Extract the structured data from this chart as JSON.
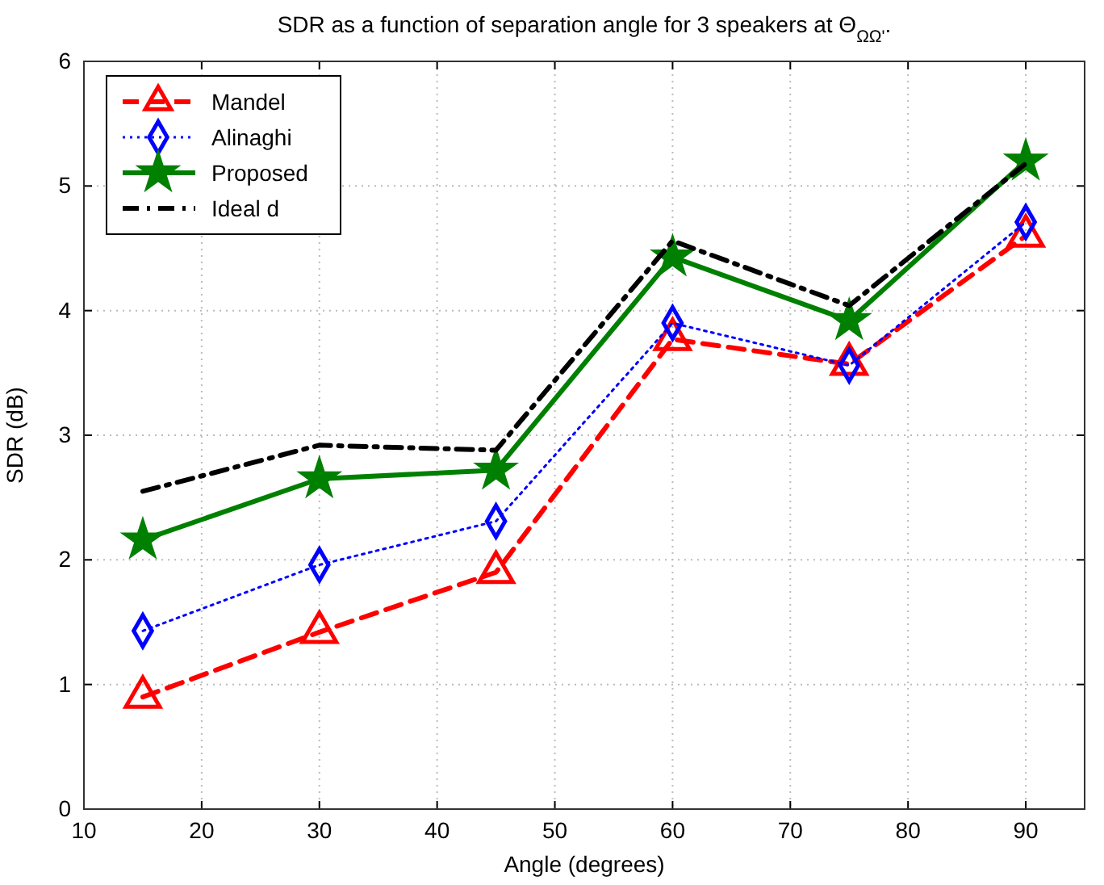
{
  "chart_data": {
    "type": "line",
    "title": "SDR as a function of separation angle for 3 speakers at Θ$_{ΩΩ'}$.",
    "xlabel": "Angle (degrees)",
    "ylabel": "SDR (dB)",
    "x": [
      15,
      30,
      45,
      60,
      75,
      90
    ],
    "xlim": [
      10,
      95
    ],
    "xticks": [
      10,
      20,
      30,
      40,
      50,
      60,
      70,
      80,
      90
    ],
    "ylim": [
      0,
      6
    ],
    "yticks": [
      0,
      1,
      2,
      3,
      4,
      5,
      6
    ],
    "grid": true,
    "legend": "top left",
    "series": [
      {
        "name": "Mandel",
        "color": "#ff0000",
        "marker": "triangle",
        "line_style": "dashed",
        "values": [
          0.9,
          1.42,
          1.9,
          3.77,
          3.57,
          4.6
        ]
      },
      {
        "name": "Alinaghi",
        "color": "#0000ff",
        "marker": "diamond",
        "line_style": "dotted",
        "values": [
          1.43,
          1.96,
          2.31,
          3.9,
          3.56,
          4.71
        ]
      },
      {
        "name": "Proposed",
        "color": "#008000",
        "marker": "star",
        "line_style": "solid",
        "values": [
          2.16,
          2.65,
          2.72,
          4.43,
          3.92,
          5.2
        ]
      },
      {
        "name": "Ideal d",
        "color": "#000000",
        "marker": "none",
        "line_style": "dashdot",
        "values": [
          2.55,
          2.92,
          2.88,
          4.56,
          4.04,
          5.18
        ]
      }
    ]
  }
}
